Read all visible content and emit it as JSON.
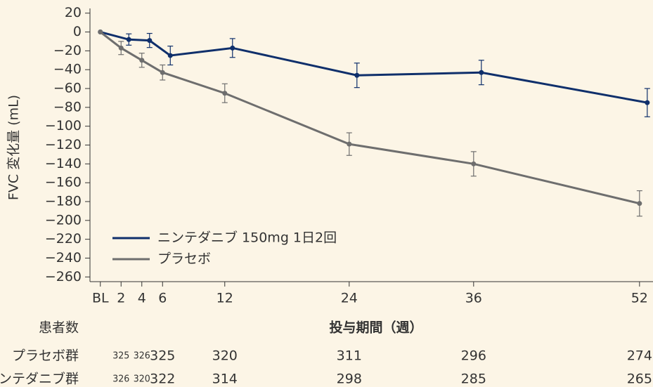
{
  "chart_data": {
    "type": "line",
    "x": [
      0,
      2,
      4,
      6,
      12,
      24,
      36,
      52
    ],
    "xlim": [
      -1,
      53.3
    ],
    "xticks": [
      {
        "value": 0,
        "label": "BL"
      },
      2,
      4,
      6,
      12,
      24,
      36,
      52
    ],
    "xlabel": "投与期間（週）",
    "ylabel": "FVC 変化量 (mL)",
    "ylim": [
      -265,
      25
    ],
    "yticks": [
      20,
      0,
      {
        "value": -20,
        "label": "−20"
      },
      {
        "value": -40,
        "label": "−40"
      },
      {
        "value": -60,
        "label": "−60"
      },
      {
        "value": -80,
        "label": "−80"
      },
      {
        "value": -100,
        "label": "−100"
      },
      {
        "value": -120,
        "label": "−120"
      },
      {
        "value": -140,
        "label": "−140"
      },
      {
        "value": -160,
        "label": "−160"
      },
      {
        "value": -180,
        "label": "−180"
      },
      {
        "value": -200,
        "label": "−200"
      },
      {
        "value": -220,
        "label": "−220"
      },
      {
        "value": -240,
        "label": "−240"
      },
      {
        "value": -260,
        "label": "−260"
      }
    ],
    "grid": false,
    "legend": "lower left",
    "series": [
      {
        "name": "ニンテダニブ 150mg 1日2回",
        "color": "#0f2f6b",
        "values": [
          0,
          -8,
          -9,
          -25,
          -17,
          -46,
          -43,
          -75
        ],
        "errors": [
          0,
          6,
          7.5,
          10,
          10,
          13,
          13,
          15
        ]
      },
      {
        "name": "プラセボ",
        "color": "#6e6e6e",
        "values": [
          0,
          -17,
          -30,
          -43,
          -65,
          -119,
          -140,
          -182
        ],
        "errors": [
          0,
          7,
          7.5,
          8,
          10,
          12,
          13,
          13.5
        ]
      }
    ],
    "patients": {
      "title": "患者数",
      "rows": [
        {
          "name": "プラセボ群",
          "counts": [
            null,
            325,
            326,
            325,
            320,
            311,
            296,
            274
          ]
        },
        {
          "name": "ニンテダニブ群",
          "counts": [
            null,
            326,
            320,
            322,
            314,
            298,
            285,
            265
          ]
        }
      ]
    }
  }
}
